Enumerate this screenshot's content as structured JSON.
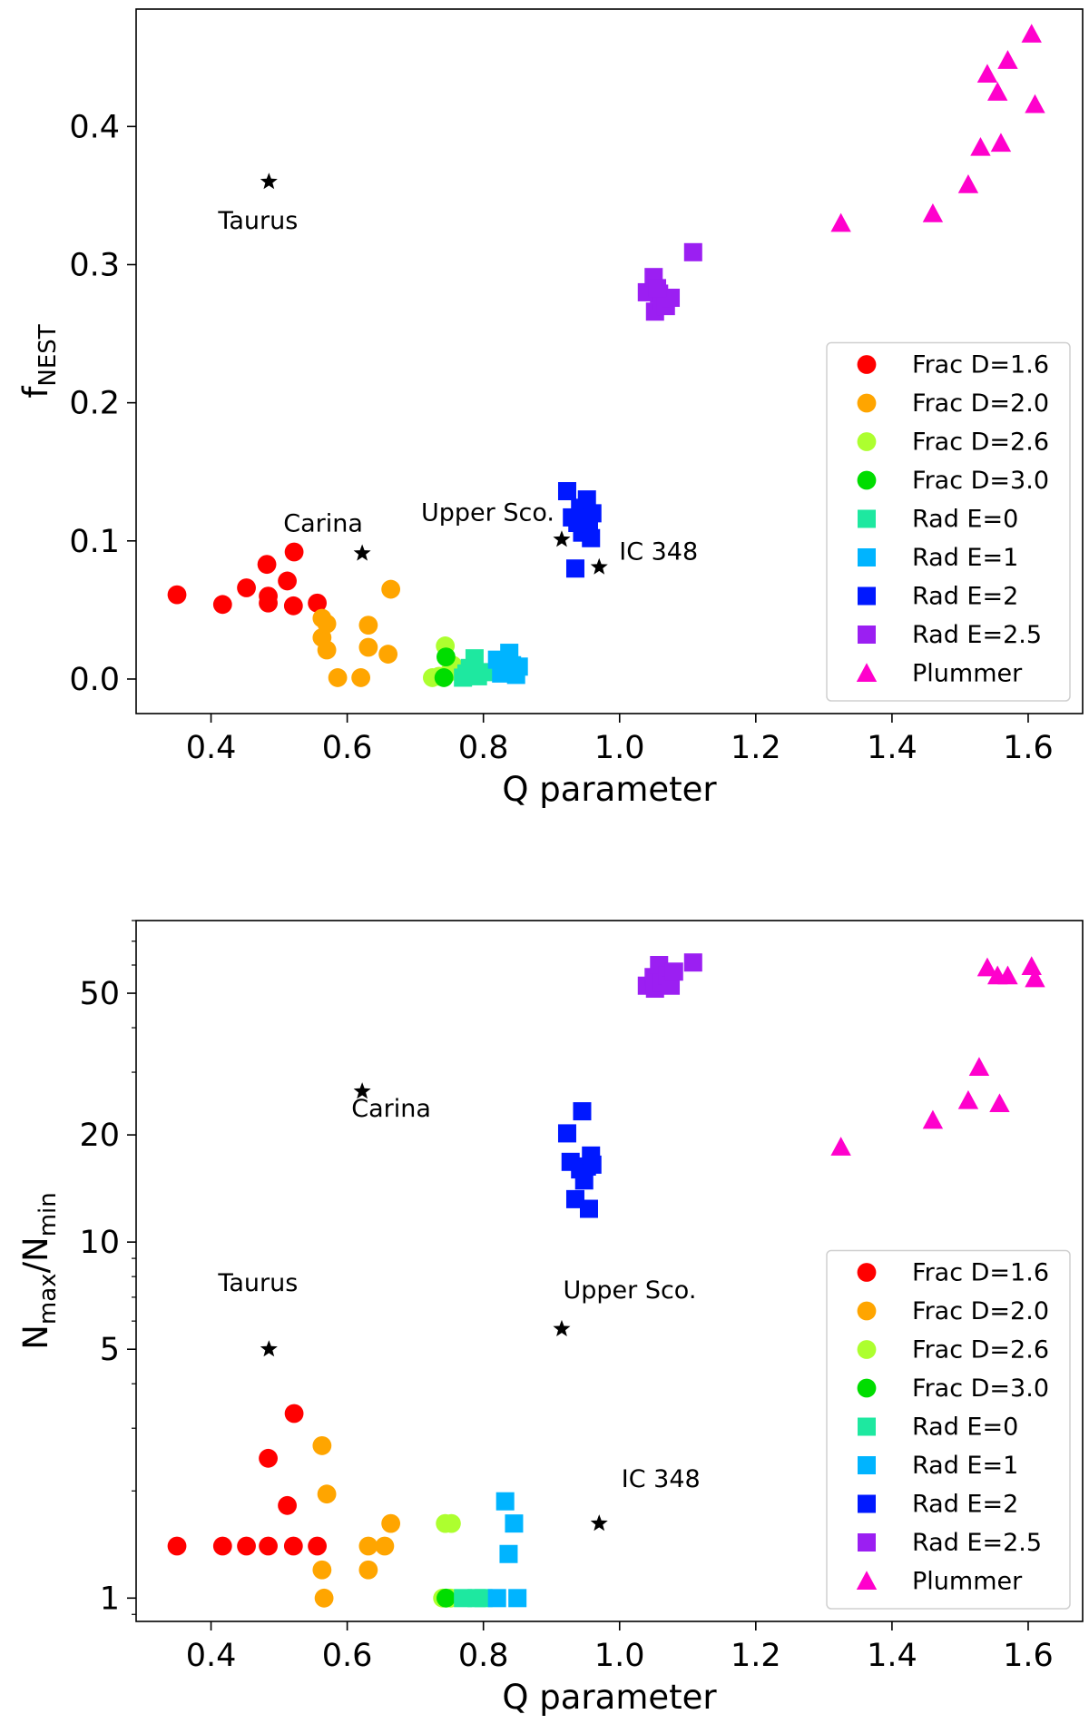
{
  "chart_data": [
    {
      "type": "scatter",
      "id": "top",
      "xlabel": "Q parameter",
      "ylabel_main": "f",
      "ylabel_sub": "NEST",
      "xlim": [
        0.29,
        1.68
      ],
      "ylim": [
        -0.025,
        0.485
      ],
      "yscale": "linear",
      "legend_position": "lower right",
      "xticks": [
        {
          "value": 0.4,
          "label": "0.4"
        },
        {
          "value": 0.6,
          "label": "0.6"
        },
        {
          "value": 0.8,
          "label": "0.8"
        },
        {
          "value": 1.0,
          "label": "1.0"
        },
        {
          "value": 1.2,
          "label": "1.2"
        },
        {
          "value": 1.4,
          "label": "1.4"
        },
        {
          "value": 1.6,
          "label": "1.6"
        }
      ],
      "yticks": [
        {
          "value": 0.0,
          "label": "0.0"
        },
        {
          "value": 0.1,
          "label": "0.1"
        },
        {
          "value": 0.2,
          "label": "0.2"
        },
        {
          "value": 0.3,
          "label": "0.3"
        },
        {
          "value": 0.4,
          "label": "0.4"
        }
      ],
      "series": [
        {
          "name": "Frac D=1.6",
          "color": "#ff0000",
          "marker": "circle",
          "points": [
            [
              0.35,
              0.061
            ],
            [
              0.417,
              0.054
            ],
            [
              0.452,
              0.066
            ],
            [
              0.482,
              0.083
            ],
            [
              0.484,
              0.06
            ],
            [
              0.484,
              0.055
            ],
            [
              0.512,
              0.071
            ],
            [
              0.521,
              0.053
            ],
            [
              0.522,
              0.092
            ],
            [
              0.556,
              0.055
            ]
          ]
        },
        {
          "name": "Frac D=2.0",
          "color": "#ffa500",
          "marker": "circle",
          "points": [
            [
              0.563,
              0.044
            ],
            [
              0.563,
              0.03
            ],
            [
              0.57,
              0.04
            ],
            [
              0.57,
              0.021
            ],
            [
              0.586,
              0.001
            ],
            [
              0.62,
              0.001
            ],
            [
              0.631,
              0.039
            ],
            [
              0.631,
              0.023
            ],
            [
              0.66,
              0.018
            ],
            [
              0.664,
              0.065
            ]
          ]
        },
        {
          "name": "Frac D=2.6",
          "color": "#adff2f",
          "marker": "circle",
          "points": [
            [
              0.725,
              0.001
            ],
            [
              0.744,
              0.024
            ],
            [
              0.75,
              0.005
            ],
            [
              0.755,
              0.01
            ],
            [
              0.735,
              0.002
            ]
          ]
        },
        {
          "name": "Frac D=3.0",
          "color": "#00dd00",
          "marker": "circle",
          "points": [
            [
              0.742,
              0.001
            ],
            [
              0.745,
              0.016
            ]
          ]
        },
        {
          "name": "Rad E=0",
          "color": "#1ee8a0",
          "marker": "square",
          "points": [
            [
              0.77,
              0.001
            ],
            [
              0.78,
              0.008
            ],
            [
              0.787,
              0.015
            ],
            [
              0.792,
              0.002
            ],
            [
              0.8,
              0.005
            ],
            [
              0.775,
              0.004
            ]
          ]
        },
        {
          "name": "Rad E=1",
          "color": "#00b4ff",
          "marker": "square",
          "points": [
            [
              0.82,
              0.014
            ],
            [
              0.83,
              0.006
            ],
            [
              0.838,
              0.019
            ],
            [
              0.842,
              0.01
            ],
            [
              0.848,
              0.003
            ],
            [
              0.852,
              0.009
            ],
            [
              0.826,
              0.004
            ]
          ]
        },
        {
          "name": "Rad E=2",
          "color": "#0018ff",
          "marker": "square",
          "points": [
            [
              0.923,
              0.136
            ],
            [
              0.93,
              0.117
            ],
            [
              0.935,
              0.08
            ],
            [
              0.942,
              0.124
            ],
            [
              0.945,
              0.106
            ],
            [
              0.948,
              0.118
            ],
            [
              0.952,
              0.13
            ],
            [
              0.955,
              0.112
            ],
            [
              0.958,
              0.102
            ],
            [
              0.96,
              0.12
            ],
            [
              0.938,
              0.113
            ]
          ]
        },
        {
          "name": "Rad E=2.5",
          "color": "#9b1ff2",
          "marker": "square",
          "points": [
            [
              1.04,
              0.28
            ],
            [
              1.05,
              0.291
            ],
            [
              1.052,
              0.266
            ],
            [
              1.058,
              0.279
            ],
            [
              1.062,
              0.274
            ],
            [
              1.068,
              0.27
            ],
            [
              1.075,
              0.276
            ],
            [
              1.108,
              0.309
            ],
            [
              1.055,
              0.283
            ]
          ]
        },
        {
          "name": "Plummer",
          "color": "#ff00cc",
          "marker": "triangle",
          "points": [
            [
              1.325,
              0.33
            ],
            [
              1.46,
              0.337
            ],
            [
              1.512,
              0.358
            ],
            [
              1.53,
              0.385
            ],
            [
              1.54,
              0.438
            ],
            [
              1.555,
              0.425
            ],
            [
              1.56,
              0.388
            ],
            [
              1.57,
              0.448
            ],
            [
              1.605,
              0.467
            ],
            [
              1.61,
              0.416
            ]
          ]
        }
      ],
      "observations": [
        {
          "name": "Taurus",
          "q": 0.485,
          "value": 0.36
        },
        {
          "name": "Carina",
          "q": 0.622,
          "value": 0.091
        },
        {
          "name": "Upper Sco.",
          "q": 0.915,
          "value": 0.101
        },
        {
          "name": "IC 348",
          "q": 0.97,
          "value": 0.081
        }
      ]
    },
    {
      "type": "scatter",
      "id": "bottom",
      "xlabel": "Q parameter",
      "ylabel_main": "N",
      "ylabel_sub1": "max",
      "ylabel_mid": "/N",
      "ylabel_sub2": "min",
      "xlim": [
        0.29,
        1.68
      ],
      "ylim": [
        0.86,
        80
      ],
      "yscale": "log",
      "legend_position": "lower right",
      "xticks": [
        {
          "value": 0.4,
          "label": "0.4"
        },
        {
          "value": 0.6,
          "label": "0.6"
        },
        {
          "value": 0.8,
          "label": "0.8"
        },
        {
          "value": 1.0,
          "label": "1.0"
        },
        {
          "value": 1.2,
          "label": "1.2"
        },
        {
          "value": 1.4,
          "label": "1.4"
        },
        {
          "value": 1.6,
          "label": "1.6"
        }
      ],
      "yticks": [
        {
          "value": 1,
          "label": "1"
        },
        {
          "value": 5,
          "label": "5"
        },
        {
          "value": 10,
          "label": "10"
        },
        {
          "value": 20,
          "label": "20"
        },
        {
          "value": 50,
          "label": "50"
        }
      ],
      "series": [
        {
          "name": "Frac D=1.6",
          "color": "#ff0000",
          "marker": "circle",
          "points": [
            [
              0.35,
              1.4
            ],
            [
              0.417,
              1.4
            ],
            [
              0.452,
              1.4
            ],
            [
              0.484,
              1.4
            ],
            [
              0.521,
              1.4
            ],
            [
              0.556,
              1.4
            ],
            [
              0.484,
              2.47
            ],
            [
              0.512,
              1.82
            ],
            [
              0.522,
              3.3
            ]
          ]
        },
        {
          "name": "Frac D=2.0",
          "color": "#ffa500",
          "marker": "circle",
          "points": [
            [
              0.563,
              2.68
            ],
            [
              0.57,
              1.96
            ],
            [
              0.563,
              1.2
            ],
            [
              0.566,
              1.0
            ],
            [
              0.631,
              1.4
            ],
            [
              0.631,
              1.2
            ],
            [
              0.655,
              1.4
            ],
            [
              0.664,
              1.62
            ]
          ]
        },
        {
          "name": "Frac D=2.6",
          "color": "#adff2f",
          "marker": "circle",
          "points": [
            [
              0.744,
              1.62
            ],
            [
              0.753,
              1.62
            ],
            [
              0.74,
              1.0
            ],
            [
              0.752,
              1.0
            ]
          ]
        },
        {
          "name": "Frac D=3.0",
          "color": "#00dd00",
          "marker": "circle",
          "points": [
            [
              0.745,
              1.0
            ]
          ]
        },
        {
          "name": "Rad E=0",
          "color": "#1ee8a0",
          "marker": "square",
          "points": [
            [
              0.77,
              1.0
            ],
            [
              0.79,
              1.0
            ],
            [
              0.8,
              1.0
            ]
          ]
        },
        {
          "name": "Rad E=1",
          "color": "#00b4ff",
          "marker": "square",
          "points": [
            [
              0.832,
              1.87
            ],
            [
              0.837,
              1.33
            ],
            [
              0.845,
              1.62
            ],
            [
              0.82,
              1.0
            ],
            [
              0.85,
              1.0
            ]
          ]
        },
        {
          "name": "Rad E=2",
          "color": "#0018ff",
          "marker": "square",
          "points": [
            [
              0.923,
              20.2
            ],
            [
              0.928,
              16.8
            ],
            [
              0.935,
              13.2
            ],
            [
              0.942,
              16.0
            ],
            [
              0.945,
              23.3
            ],
            [
              0.948,
              14.9
            ],
            [
              0.952,
              16.3
            ],
            [
              0.955,
              12.4
            ],
            [
              0.958,
              17.5
            ],
            [
              0.96,
              16.5
            ]
          ]
        },
        {
          "name": "Rad E=2.5",
          "color": "#9b1ff2",
          "marker": "square",
          "points": [
            [
              1.04,
              52.5
            ],
            [
              1.05,
              55.5
            ],
            [
              1.052,
              51.5
            ],
            [
              1.058,
              60.0
            ],
            [
              1.062,
              53.5
            ],
            [
              1.07,
              56.0
            ],
            [
              1.075,
              52.5
            ],
            [
              1.08,
              57.5
            ],
            [
              1.108,
              61.0
            ]
          ]
        },
        {
          "name": "Plummer",
          "color": "#ff00cc",
          "marker": "triangle",
          "points": [
            [
              1.325,
              18.5
            ],
            [
              1.46,
              22.0
            ],
            [
              1.512,
              25.0
            ],
            [
              1.528,
              31.0
            ],
            [
              1.54,
              59.0
            ],
            [
              1.555,
              56.0
            ],
            [
              1.558,
              24.5
            ],
            [
              1.57,
              56.0
            ],
            [
              1.605,
              59.5
            ],
            [
              1.61,
              55.0
            ]
          ]
        }
      ],
      "observations": [
        {
          "name": "Taurus",
          "q": 0.485,
          "value": 5.0
        },
        {
          "name": "Carina",
          "q": 0.622,
          "value": 26.5
        },
        {
          "name": "Upper Sco.",
          "q": 0.915,
          "value": 5.7
        },
        {
          "name": "IC 348",
          "q": 0.97,
          "value": 1.62
        }
      ]
    }
  ]
}
